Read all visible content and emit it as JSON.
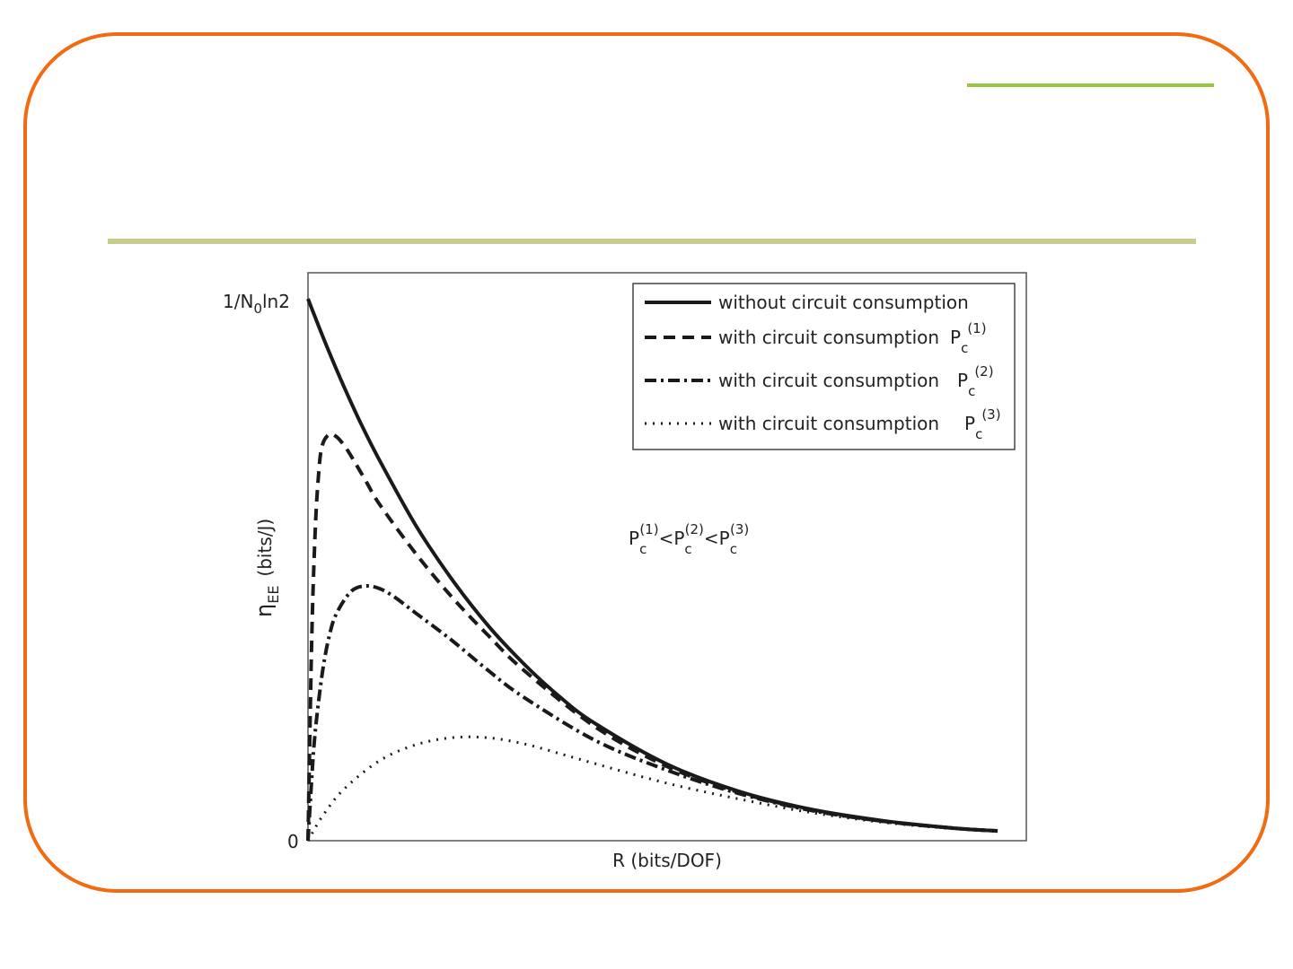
{
  "colors": {
    "frame": "#f26b12",
    "accent_line": "#9bc53d",
    "title_rule": "#c5cc8e",
    "curves": "#1a1a1a"
  },
  "chart_data": {
    "type": "line",
    "xlabel": "R (bits/DOF)",
    "ylabel": "η",
    "ylabel_sub": "EE",
    "ylabel_unit": "(bits/J)",
    "y_tick_top": {
      "main": "1/N",
      "sub": "0",
      "tail": "ln2"
    },
    "y_tick_bottom": "0",
    "xlim": [
      0,
      10
    ],
    "ylim": [
      0,
      1
    ],
    "grid": false,
    "legend_position": "top-right",
    "series": [
      {
        "name": "without circuit consumption",
        "pc": "",
        "style": "solid",
        "x": [
          0,
          0.25,
          0.5,
          0.75,
          1,
          1.5,
          2,
          2.5,
          3,
          3.5,
          4,
          5,
          6,
          7,
          8,
          9,
          9.6
        ],
        "values": [
          1.0,
          0.916,
          0.838,
          0.766,
          0.701,
          0.582,
          0.483,
          0.398,
          0.327,
          0.266,
          0.216,
          0.141,
          0.091,
          0.058,
          0.037,
          0.023,
          0.018
        ]
      },
      {
        "name": "with circuit consumption",
        "pc": "(1)",
        "style": "dashed",
        "x": [
          0,
          0.05,
          0.1,
          0.15,
          0.2,
          0.3,
          0.4,
          0.5,
          0.6,
          0.8,
          1,
          1.5,
          2,
          2.5,
          3,
          4,
          5,
          6,
          7,
          8,
          9,
          9.6
        ],
        "values": [
          0,
          0.36,
          0.57,
          0.68,
          0.73,
          0.75,
          0.745,
          0.73,
          0.71,
          0.665,
          0.62,
          0.53,
          0.45,
          0.38,
          0.315,
          0.21,
          0.137,
          0.089,
          0.057,
          0.036,
          0.023,
          0.018
        ]
      },
      {
        "name": "with circuit consumption",
        "pc": "(2)",
        "style": "dashdot",
        "x": [
          0,
          0.05,
          0.1,
          0.2,
          0.3,
          0.4,
          0.6,
          0.8,
          1,
          1.2,
          1.5,
          2,
          2.5,
          3,
          4,
          5,
          6,
          7,
          8,
          9,
          9.6
        ],
        "values": [
          0,
          0.11,
          0.2,
          0.31,
          0.38,
          0.42,
          0.46,
          0.47,
          0.465,
          0.45,
          0.42,
          0.37,
          0.315,
          0.265,
          0.185,
          0.13,
          0.087,
          0.056,
          0.036,
          0.023,
          0.018
        ]
      },
      {
        "name": "with circuit consumption",
        "pc": "(3)",
        "style": "dotted",
        "x": [
          0,
          0.2,
          0.5,
          1,
          1.5,
          2,
          2.5,
          3,
          3.5,
          4,
          5,
          6,
          7,
          8,
          9,
          9.6
        ],
        "values": [
          0,
          0.045,
          0.095,
          0.148,
          0.177,
          0.19,
          0.19,
          0.179,
          0.161,
          0.142,
          0.106,
          0.077,
          0.052,
          0.034,
          0.022,
          0.017
        ]
      }
    ],
    "annotation": {
      "text": "P_c^(1) < P_c^(2) < P_c^(3)",
      "parts": [
        "P",
        "c",
        "(1)",
        "<P",
        "c",
        "(2)",
        "<P",
        "c",
        "(3)"
      ]
    }
  }
}
